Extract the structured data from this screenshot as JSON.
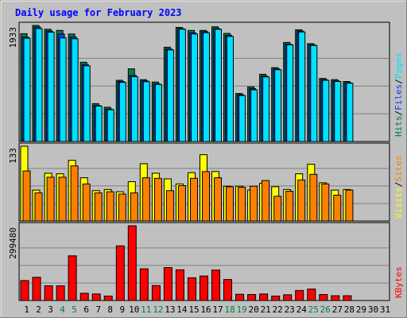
{
  "title": "Daily usage for February 2023",
  "colors": {
    "background": "#c0c0c0",
    "panel": "#c0c0c0",
    "title": "#0000ff",
    "hits": "#008040",
    "files": "#0040ff",
    "pages": "#00e0ff",
    "visits": "#ffff00",
    "sites": "#ff8000",
    "kbytes": "#ff0000",
    "weekend": "#008040",
    "weekday": "#000000"
  },
  "legend": {
    "top": [
      {
        "text": "Hits",
        "color": "#008040"
      },
      {
        "text": "/",
        "color": "#000000"
      },
      {
        "text": "Files",
        "color": "#0040ff"
      },
      {
        "text": "/",
        "color": "#000000"
      },
      {
        "text": "Pages",
        "color": "#00e0ff"
      }
    ],
    "middle": [
      {
        "text": "Visits",
        "color": "#ffff00"
      },
      {
        "text": "/",
        "color": "#000000"
      },
      {
        "text": "Sites",
        "color": "#ff8000"
      }
    ],
    "bottom": [
      {
        "text": "KBytes",
        "color": "#ff0000"
      }
    ]
  },
  "chart_data": [
    {
      "type": "bar",
      "panel": "hits-files-pages",
      "ymax_label": "1933",
      "ylim": [
        0,
        1933
      ],
      "x": [
        1,
        2,
        3,
        4,
        5,
        6,
        7,
        8,
        9,
        10,
        11,
        12,
        13,
        14,
        15,
        16,
        17,
        18,
        19,
        20,
        21,
        22,
        23,
        24,
        25,
        26,
        27,
        28
      ],
      "series": [
        {
          "name": "Hits",
          "values": [
            1795,
            1933,
            1870,
            1850,
            1790,
            1320,
            630,
            570,
            1020,
            1210,
            1030,
            990,
            1570,
            1900,
            1850,
            1850,
            1910,
            1800,
            800,
            910,
            1120,
            1230,
            1650,
            1860,
            1630,
            1050,
            1030,
            1000
          ]
        },
        {
          "name": "Files",
          "values": [
            1740,
            1905,
            1840,
            1790,
            1740,
            1280,
            600,
            540,
            1000,
            1100,
            1010,
            960,
            1540,
            1880,
            1810,
            1830,
            1880,
            1770,
            780,
            880,
            1090,
            1210,
            1620,
            1840,
            1610,
            1030,
            1010,
            980
          ]
        },
        {
          "name": "Pages",
          "values": [
            1720,
            1880,
            1820,
            1725,
            1710,
            1260,
            590,
            530,
            985,
            1080,
            995,
            950,
            1525,
            1870,
            1790,
            1810,
            1870,
            1750,
            765,
            860,
            1075,
            1195,
            1610,
            1825,
            1600,
            1020,
            1000,
            970
          ]
        }
      ]
    },
    {
      "type": "bar",
      "panel": "visits-sites",
      "ymax_label": "133",
      "ylim": [
        0,
        133
      ],
      "x": [
        1,
        2,
        3,
        4,
        5,
        6,
        7,
        8,
        9,
        10,
        11,
        12,
        13,
        14,
        15,
        16,
        17,
        18,
        19,
        20,
        21,
        22,
        23,
        24,
        25,
        26,
        27,
        28
      ],
      "series": [
        {
          "name": "Visits",
          "values": [
            133,
            55,
            85,
            84,
            108,
            77,
            54,
            56,
            52,
            70,
            102,
            85,
            75,
            66,
            86,
            118,
            88,
            62,
            62,
            55,
            67,
            61,
            56,
            84,
            101,
            68,
            55,
            56
          ]
        },
        {
          "name": "Sites",
          "values": [
            89,
            50,
            78,
            78,
            98,
            66,
            50,
            52,
            48,
            50,
            77,
            76,
            54,
            63,
            76,
            88,
            77,
            61,
            60,
            62,
            72,
            44,
            53,
            73,
            83,
            66,
            46,
            55
          ]
        }
      ]
    },
    {
      "type": "bar",
      "panel": "kbytes",
      "ymax_label": "299480",
      "ylim": [
        0,
        299480
      ],
      "x": [
        1,
        2,
        3,
        4,
        5,
        6,
        7,
        8,
        9,
        10,
        11,
        12,
        13,
        14,
        15,
        16,
        17,
        18,
        19,
        20,
        21,
        22,
        23,
        24,
        25,
        26,
        27,
        28
      ],
      "series": [
        {
          "name": "KBytes",
          "values": [
            80000,
            93000,
            59000,
            59000,
            179000,
            29000,
            26000,
            18000,
            219000,
            299480,
            127000,
            60000,
            132000,
            123000,
            91000,
            98000,
            122000,
            84000,
            25000,
            24000,
            26000,
            18000,
            23000,
            40000,
            46000,
            24000,
            19000,
            19000
          ]
        }
      ]
    }
  ],
  "x_axis": {
    "days": [
      "1",
      "2",
      "3",
      "4",
      "5",
      "6",
      "7",
      "8",
      "9",
      "10",
      "11",
      "12",
      "13",
      "14",
      "15",
      "16",
      "17",
      "18",
      "19",
      "20",
      "21",
      "22",
      "23",
      "24",
      "25",
      "26",
      "27",
      "28",
      "29",
      "30",
      "31"
    ],
    "weekend_days": [
      4,
      5,
      11,
      12,
      18,
      19,
      25,
      26
    ]
  }
}
